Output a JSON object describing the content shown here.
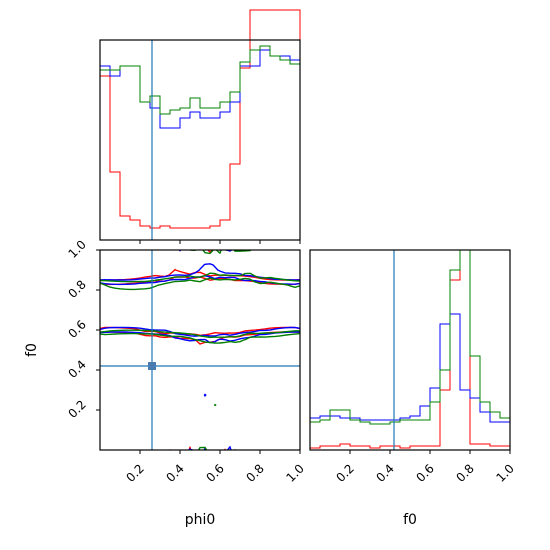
{
  "chart_data": [
    {
      "type": "histogram",
      "panel": "phi0-marginal",
      "xlim": [
        0,
        1
      ],
      "bins": [
        0.0,
        0.05,
        0.1,
        0.15,
        0.2,
        0.25,
        0.3,
        0.35,
        0.4,
        0.45,
        0.5,
        0.55,
        0.6,
        0.65,
        0.7,
        0.75,
        0.8,
        0.85,
        0.9,
        0.95,
        1.0
      ],
      "truth": 0.26,
      "series": [
        {
          "color": "#ff0000",
          "values": [
            0.82,
            0.34,
            0.12,
            0.1,
            0.07,
            0.06,
            0.07,
            0.06,
            0.06,
            0.06,
            0.06,
            0.07,
            0.1,
            0.38,
            0.86,
            1.15,
            1.15,
            1.15,
            1.15,
            1.15
          ]
        },
        {
          "color": "#0000ff",
          "values": [
            0.87,
            0.82,
            0.87,
            0.87,
            0.69,
            0.66,
            0.56,
            0.56,
            0.61,
            0.64,
            0.61,
            0.61,
            0.64,
            0.69,
            0.87,
            0.87,
            0.95,
            0.92,
            0.92,
            0.9
          ]
        },
        {
          "color": "#008000",
          "values": [
            0.85,
            0.85,
            0.87,
            0.87,
            0.69,
            0.72,
            0.63,
            0.65,
            0.66,
            0.71,
            0.66,
            0.66,
            0.69,
            0.74,
            0.89,
            0.95,
            0.97,
            0.92,
            0.9,
            0.88
          ]
        }
      ]
    },
    {
      "type": "contour",
      "panel": "phi0-f0-joint",
      "xlabel": "phi0",
      "ylabel": "f0",
      "xlim": [
        0,
        1
      ],
      "ylim": [
        0,
        1
      ],
      "xticks": [
        "0.2",
        "0.4",
        "0.6",
        "0.8",
        "1.0"
      ],
      "yticks": [
        "0.2",
        "0.4",
        "0.6",
        "0.8",
        "1.0"
      ],
      "truth_x": 0.26,
      "truth_y": 0.42,
      "contour_colors": [
        "#ff0000",
        "#0000ff",
        "#008000"
      ]
    },
    {
      "type": "histogram",
      "panel": "f0-marginal",
      "xlabel": "f0",
      "xlim": [
        0,
        1
      ],
      "xticks": [
        "0.2",
        "0.4",
        "0.6",
        "0.8",
        "1.0"
      ],
      "bins": [
        0.0,
        0.05,
        0.1,
        0.15,
        0.2,
        0.25,
        0.3,
        0.35,
        0.4,
        0.45,
        0.5,
        0.55,
        0.6,
        0.65,
        0.7,
        0.75,
        0.8,
        0.85,
        0.9,
        0.95,
        1.0
      ],
      "truth": 0.42,
      "series": [
        {
          "color": "#ff0000",
          "values": [
            0.01,
            0.02,
            0.02,
            0.03,
            0.02,
            0.02,
            0.01,
            0.02,
            0.02,
            0.01,
            0.02,
            0.02,
            0.02,
            0.3,
            0.85,
            1.1,
            0.03,
            0.03,
            0.02,
            0.02
          ]
        },
        {
          "color": "#0000ff",
          "values": [
            0.16,
            0.17,
            0.17,
            0.16,
            0.16,
            0.15,
            0.15,
            0.15,
            0.15,
            0.16,
            0.17,
            0.22,
            0.31,
            0.63,
            0.68,
            0.3,
            0.26,
            0.19,
            0.14,
            0.14
          ]
        },
        {
          "color": "#008000",
          "values": [
            0.14,
            0.15,
            0.2,
            0.2,
            0.15,
            0.14,
            0.13,
            0.13,
            0.14,
            0.15,
            0.15,
            0.15,
            0.24,
            0.4,
            0.9,
            1.1,
            0.47,
            0.24,
            0.19,
            0.16
          ]
        }
      ]
    }
  ]
}
